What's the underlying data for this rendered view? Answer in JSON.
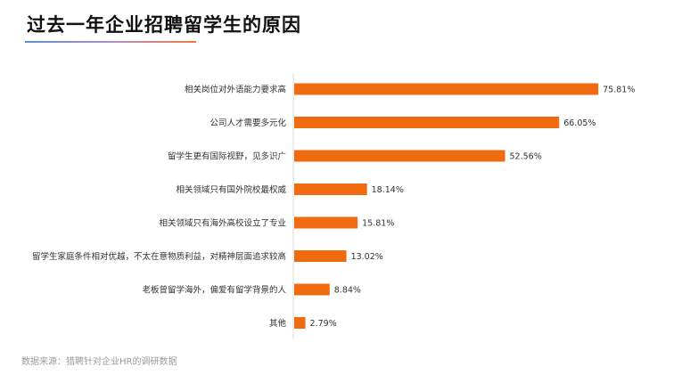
{
  "title": "过去一年企业招聘留学生的原因",
  "source": "数据来源：猎聘针对企业HR的调研数据",
  "colors": {
    "bar": "#f06a10",
    "accent_line_start": "#5b8fd4",
    "accent_line_end": "#f07a3c"
  },
  "chart_data": {
    "type": "bar",
    "orientation": "horizontal",
    "categories": [
      "相关岗位对外语能力要求高",
      "公司人才需要多元化",
      "留学生更有国际视野，见多识广",
      "相关领域只有国外院校最权威",
      "相关领域只有海外高校设立了专业",
      "留学生家庭条件相对优越，不太在意物质利益，对精神层面追求较高",
      "老板曾留学海外，偏爱有留学背景的人",
      "其他"
    ],
    "values": [
      75.81,
      66.05,
      52.56,
      18.14,
      15.81,
      13.02,
      8.84,
      2.79
    ],
    "value_labels": [
      "75.81%",
      "66.05%",
      "52.56%",
      "18.14%",
      "15.81%",
      "13.02%",
      "8.84%",
      "2.79%"
    ],
    "unit": "%",
    "xlim": [
      0,
      100
    ],
    "grid": false,
    "legend": "none"
  }
}
